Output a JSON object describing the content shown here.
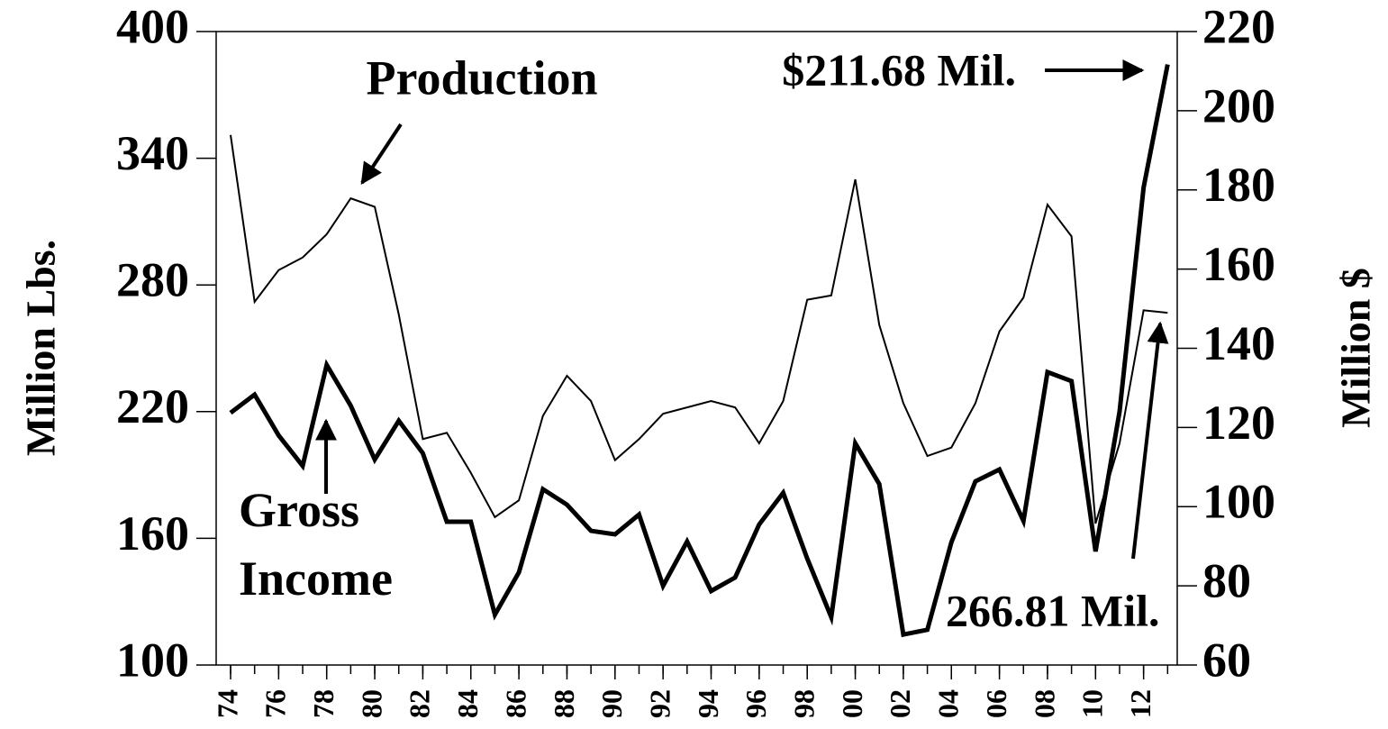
{
  "chart_data": {
    "type": "line",
    "x": [
      1974,
      1975,
      1976,
      1977,
      1978,
      1979,
      1980,
      1981,
      1982,
      1983,
      1984,
      1985,
      1986,
      1987,
      1988,
      1989,
      1990,
      1991,
      1992,
      1993,
      1994,
      1995,
      1996,
      1997,
      1998,
      1999,
      2000,
      2001,
      2002,
      2003,
      2004,
      2005,
      2006,
      2007,
      2008,
      2009,
      2010,
      2011,
      2012,
      2013
    ],
    "xlim": [
      1973.4,
      2013.4
    ],
    "xticks": [
      {
        "value": 1974,
        "label": "74"
      },
      {
        "value": 1976,
        "label": "76"
      },
      {
        "value": 1978,
        "label": "78"
      },
      {
        "value": 1980,
        "label": "80"
      },
      {
        "value": 1982,
        "label": "82"
      },
      {
        "value": 1984,
        "label": "84"
      },
      {
        "value": 1986,
        "label": "86"
      },
      {
        "value": 1988,
        "label": "88"
      },
      {
        "value": 1990,
        "label": "90"
      },
      {
        "value": 1992,
        "label": "92"
      },
      {
        "value": 1994,
        "label": "94"
      },
      {
        "value": 1996,
        "label": "96"
      },
      {
        "value": 1998,
        "label": "98"
      },
      {
        "value": 2000,
        "label": "00"
      },
      {
        "value": 2002,
        "label": "02"
      },
      {
        "value": 2004,
        "label": "04"
      },
      {
        "value": 2006,
        "label": "06"
      },
      {
        "value": 2008,
        "label": "08"
      },
      {
        "value": 2010,
        "label": "10"
      },
      {
        "value": 2012,
        "label": "12"
      }
    ],
    "ylabel": "Million Lbs.",
    "ylim": [
      100,
      400
    ],
    "yticks": [
      100,
      160,
      220,
      280,
      340,
      400
    ],
    "y2label": "Million $",
    "y2lim": [
      60,
      220
    ],
    "y2ticks": [
      60,
      80,
      100,
      120,
      140,
      160,
      180,
      200,
      220
    ],
    "series": [
      {
        "name": "Production",
        "color": "#000000",
        "width": 2,
        "values": [
          351,
          272,
          287,
          293,
          304,
          321,
          317,
          266,
          207,
          210,
          191,
          170,
          178,
          218,
          237,
          225,
          197,
          207,
          219,
          222,
          225,
          222,
          205,
          225,
          273,
          275,
          330,
          261,
          224,
          199,
          203,
          224,
          258,
          274,
          318,
          303,
          167,
          205,
          268,
          266.81
        ],
        "value_labels": [
          null,
          null,
          null,
          null,
          null,
          null,
          null,
          null,
          null,
          null,
          null,
          null,
          null,
          null,
          null,
          null,
          null,
          null,
          null,
          null,
          null,
          null,
          null,
          null,
          null,
          null,
          null,
          null,
          null,
          null,
          null,
          null,
          null,
          null,
          null,
          null,
          null,
          null,
          null,
          "266.81 Mil."
        ]
      },
      {
        "name": "Gross Income",
        "color": "#000000",
        "width": 5,
        "axis": "y2",
        "values": [
          123.7,
          128.3,
          118,
          110.3,
          135.8,
          125.5,
          111.9,
          121.7,
          113.5,
          96.2,
          96.2,
          72.7,
          83.4,
          104.4,
          100.5,
          93.9,
          93,
          98,
          80,
          91.2,
          78.7,
          82.1,
          95.5,
          103.5,
          86.9,
          72.1,
          116,
          105.7,
          67.7,
          68.9,
          91,
          106.4,
          109.4,
          96.4,
          134,
          131.7,
          88.7,
          124,
          180.6,
          211.68
        ],
        "value_labels": [
          null,
          null,
          null,
          null,
          null,
          null,
          null,
          null,
          null,
          null,
          null,
          null,
          null,
          null,
          null,
          null,
          null,
          null,
          null,
          null,
          null,
          null,
          null,
          null,
          null,
          null,
          null,
          null,
          null,
          null,
          null,
          null,
          null,
          null,
          null,
          null,
          null,
          null,
          null,
          "$211.68 Mil."
        ]
      }
    ]
  }
}
